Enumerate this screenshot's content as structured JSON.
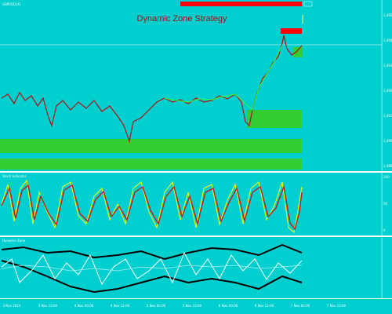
{
  "header": {
    "symbol": "GBPUSD,H1",
    "title": "Dynamic Zone Strategy"
  },
  "panels": [
    {
      "label": "Stoch Indicator"
    },
    {
      "label": "Dynamic Zone"
    }
  ],
  "price_axis": [
    "1.4955",
    "1.4945",
    "1.4935",
    "1.4925",
    "1.4915",
    "1.4905",
    "1.4895"
  ],
  "stoch_axis": [
    "100",
    "50",
    "0"
  ],
  "time_axis": [
    "3 Nov 2014",
    "3 Nov 12:00",
    "4 Nov 00:00",
    "4 Nov 12:00",
    "5 Nov 00:00",
    "5 Nov 12:00",
    "6 Nov 00:00",
    "6 Nov 12:00",
    "7 Nov 00:00",
    "7 Nov 12:00"
  ]
}
